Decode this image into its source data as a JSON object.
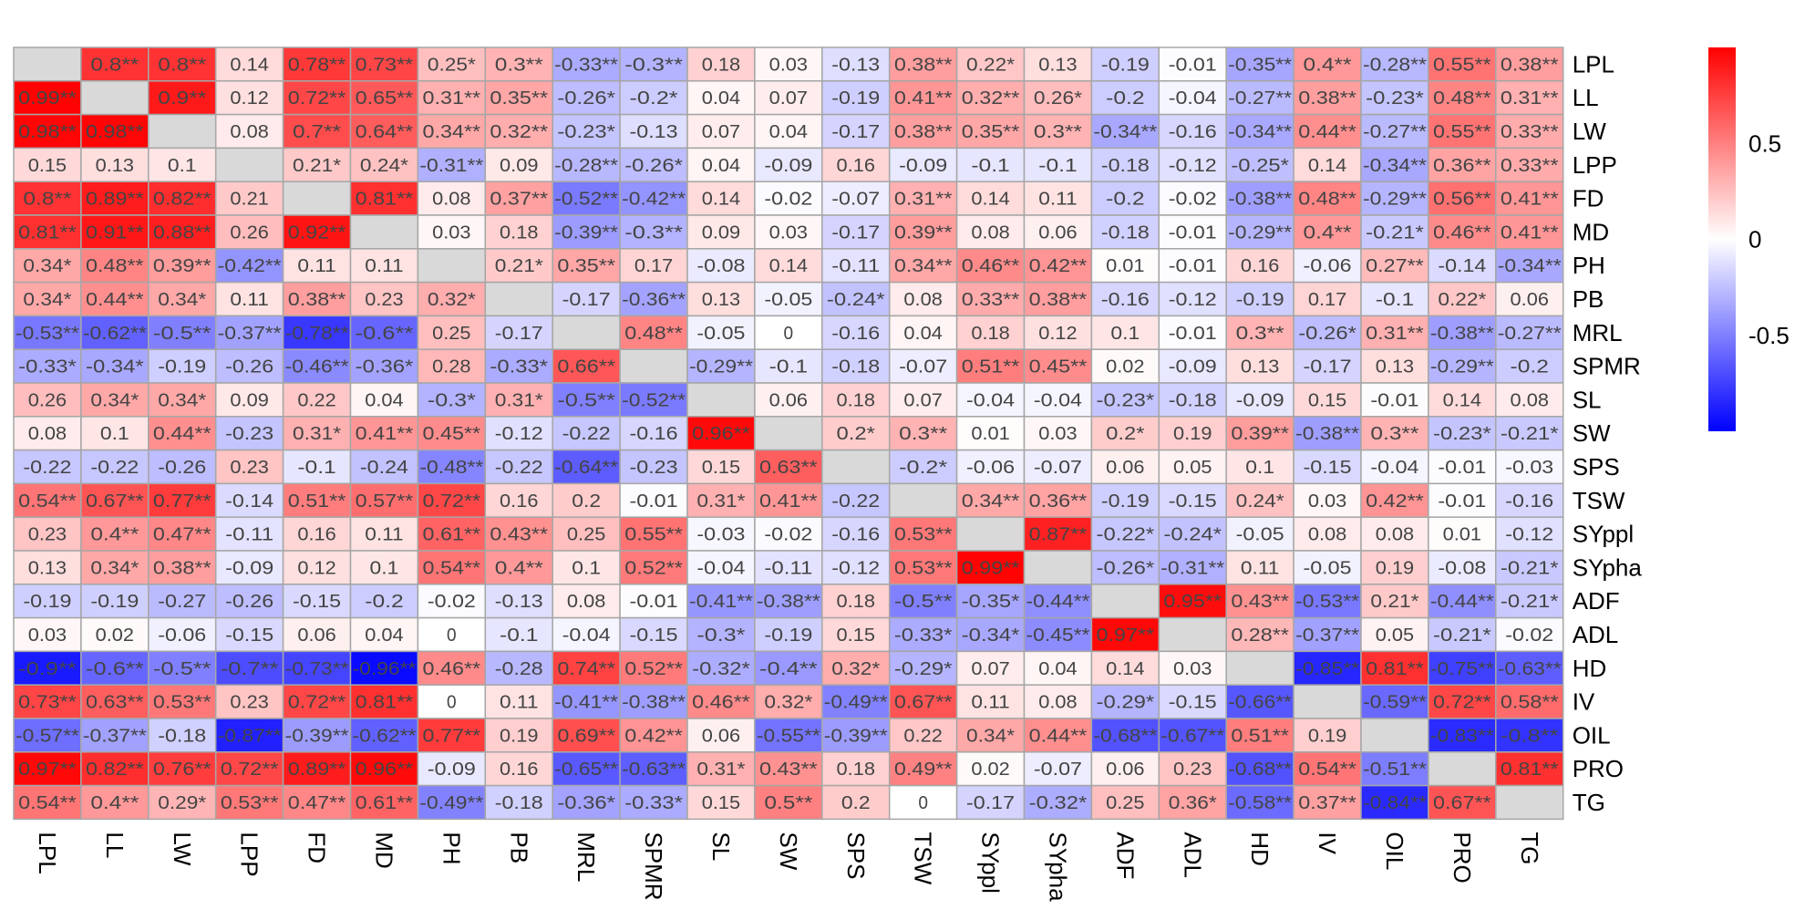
{
  "chart_data": {
    "type": "heatmap",
    "title": "",
    "labels": [
      "LPL",
      "LL",
      "LW",
      "LPP",
      "FD",
      "MD",
      "PH",
      "PB",
      "MRL",
      "SPMR",
      "SL",
      "SW",
      "SPS",
      "TSW",
      "SYppl",
      "SYpha",
      "ADF",
      "ADL",
      "HD",
      "IV",
      "OIL",
      "PRO",
      "TG"
    ],
    "matrix": [
      [
        null,
        "0.8**",
        "0.8**",
        "0.14",
        "0.78**",
        "0.73**",
        "0.25*",
        "0.3**",
        "-0.33**",
        "-0.3**",
        "0.18",
        "0.03",
        "-0.13",
        "0.38**",
        "0.22*",
        "0.13",
        "-0.19",
        "-0.01",
        "-0.35**",
        "0.4**",
        "-0.28**",
        "0.55**",
        "0.38**"
      ],
      [
        "0.99**",
        null,
        "0.9**",
        "0.12",
        "0.72**",
        "0.65**",
        "0.31**",
        "0.35**",
        "-0.26*",
        "-0.2*",
        "0.04",
        "0.07",
        "-0.19",
        "0.41**",
        "0.32**",
        "0.26*",
        "-0.2",
        "-0.04",
        "-0.27**",
        "0.38**",
        "-0.23*",
        "0.48**",
        "0.31**"
      ],
      [
        "0.98**",
        "0.98**",
        null,
        "0.08",
        "0.7**",
        "0.64**",
        "0.34**",
        "0.32**",
        "-0.23*",
        "-0.13",
        "0.07",
        "0.04",
        "-0.17",
        "0.38**",
        "0.35**",
        "0.3**",
        "-0.34**",
        "-0.16",
        "-0.34**",
        "0.44**",
        "-0.27**",
        "0.55**",
        "0.33**"
      ],
      [
        "0.15",
        "0.13",
        "0.1",
        null,
        "0.21*",
        "0.24*",
        "-0.31**",
        "0.09",
        "-0.28**",
        "-0.26*",
        "0.04",
        "-0.09",
        "0.16",
        "-0.09",
        "-0.1",
        "-0.1",
        "-0.18",
        "-0.12",
        "-0.25*",
        "0.14",
        "-0.34**",
        "0.36**",
        "0.33**"
      ],
      [
        "0.8**",
        "0.89**",
        "0.82**",
        "0.21",
        null,
        "0.81**",
        "0.08",
        "0.37**",
        "-0.52**",
        "-0.42**",
        "0.14",
        "-0.02",
        "-0.07",
        "0.31**",
        "0.14",
        "0.11",
        "-0.2",
        "-0.02",
        "-0.38**",
        "0.48**",
        "-0.29**",
        "0.56**",
        "0.41**"
      ],
      [
        "0.81**",
        "0.91**",
        "0.88**",
        "0.26",
        "0.92**",
        null,
        "0.03",
        "0.18",
        "-0.39**",
        "-0.3**",
        "0.09",
        "0.03",
        "-0.17",
        "0.39**",
        "0.08",
        "0.06",
        "-0.18",
        "-0.01",
        "-0.29**",
        "0.4**",
        "-0.21*",
        "0.46**",
        "0.41**"
      ],
      [
        "0.34*",
        "0.48**",
        "0.39**",
        "-0.42**",
        "0.11",
        "0.11",
        null,
        "0.21*",
        "0.35**",
        "0.17",
        "-0.08",
        "0.14",
        "-0.11",
        "0.34**",
        "0.46**",
        "0.42**",
        "0.01",
        "-0.01",
        "0.16",
        "-0.06",
        "0.27**",
        "-0.14",
        "-0.34**"
      ],
      [
        "0.34*",
        "0.44**",
        "0.34*",
        "0.11",
        "0.38**",
        "0.23",
        "0.32*",
        null,
        "-0.17",
        "-0.36**",
        "0.13",
        "-0.05",
        "-0.24*",
        "0.08",
        "0.33**",
        "0.38**",
        "-0.16",
        "-0.12",
        "-0.19",
        "0.17",
        "-0.1",
        "0.22*",
        "0.06"
      ],
      [
        "-0.53**",
        "-0.62**",
        "-0.5**",
        "-0.37**",
        "-0.78**",
        "-0.6**",
        "0.25",
        "-0.17",
        null,
        "0.48**",
        "-0.05",
        "0",
        "-0.16",
        "0.04",
        "0.18",
        "0.12",
        "0.1",
        "-0.01",
        "0.3**",
        "-0.26*",
        "0.31**",
        "-0.38**",
        "-0.27**"
      ],
      [
        "-0.33*",
        "-0.34*",
        "-0.19",
        "-0.26",
        "-0.46**",
        "-0.36*",
        "0.28",
        "-0.33*",
        "0.66**",
        null,
        "-0.29**",
        "-0.1",
        "-0.18",
        "-0.07",
        "0.51**",
        "0.45**",
        "0.02",
        "-0.09",
        "0.13",
        "-0.17",
        "0.13",
        "-0.29**",
        "-0.2"
      ],
      [
        "0.26",
        "0.34*",
        "0.34*",
        "0.09",
        "0.22",
        "0.04",
        "-0.3*",
        "0.31*",
        "-0.5**",
        "-0.52**",
        null,
        "0.06",
        "0.18",
        "0.07",
        "-0.04",
        "-0.04",
        "-0.23*",
        "-0.18",
        "-0.09",
        "0.15",
        "-0.01",
        "0.14",
        "0.08"
      ],
      [
        "0.08",
        "0.1",
        "0.44**",
        "-0.23",
        "0.31*",
        "0.41**",
        "0.45**",
        "-0.12",
        "-0.22",
        "-0.16",
        "0.96**",
        null,
        "0.2*",
        "0.3**",
        "0.01",
        "0.03",
        "0.2*",
        "0.19",
        "0.39**",
        "-0.38**",
        "0.3**",
        "-0.23*",
        "-0.21*"
      ],
      [
        "-0.22",
        "-0.22",
        "-0.26",
        "0.23",
        "-0.1",
        "-0.24",
        "-0.48**",
        "-0.22",
        "-0.64**",
        "-0.23",
        "0.15",
        "0.63**",
        null,
        "-0.2*",
        "-0.06",
        "-0.07",
        "0.06",
        "0.05",
        "0.1",
        "-0.15",
        "-0.04",
        "-0.01",
        "-0.03"
      ],
      [
        "0.54**",
        "0.67**",
        "0.77**",
        "-0.14",
        "0.51**",
        "0.57**",
        "0.72**",
        "0.16",
        "0.2",
        "-0.01",
        "0.31*",
        "0.41**",
        "-0.22",
        null,
        "0.34**",
        "0.36**",
        "-0.19",
        "-0.15",
        "0.24*",
        "0.03",
        "0.42**",
        "-0.01",
        "-0.16"
      ],
      [
        "0.23",
        "0.4**",
        "0.47**",
        "-0.11",
        "0.16",
        "0.11",
        "0.61**",
        "0.43**",
        "0.25",
        "0.55**",
        "-0.03",
        "-0.02",
        "-0.16",
        "0.53**",
        null,
        "0.87**",
        "-0.22*",
        "-0.24*",
        "-0.05",
        "0.08",
        "0.08",
        "0.01",
        "-0.12"
      ],
      [
        "0.13",
        "0.34*",
        "0.38**",
        "-0.09",
        "0.12",
        "0.1",
        "0.54**",
        "0.4**",
        "0.1",
        "0.52**",
        "-0.04",
        "-0.11",
        "-0.12",
        "0.53**",
        "0.99**",
        null,
        "-0.26*",
        "-0.31**",
        "0.11",
        "-0.05",
        "0.19",
        "-0.08",
        "-0.21*"
      ],
      [
        "-0.19",
        "-0.19",
        "-0.27",
        "-0.26",
        "-0.15",
        "-0.2",
        "-0.02",
        "-0.13",
        "0.08",
        "-0.01",
        "-0.41**",
        "-0.38**",
        "0.18",
        "-0.5**",
        "-0.35*",
        "-0.44**",
        null,
        "0.95**",
        "0.43**",
        "-0.53**",
        "0.21*",
        "-0.44**",
        "-0.21*"
      ],
      [
        "0.03",
        "0.02",
        "-0.06",
        "-0.15",
        "0.06",
        "0.04",
        "0",
        "-0.1",
        "-0.04",
        "-0.15",
        "-0.3*",
        "-0.19",
        "0.15",
        "-0.33*",
        "-0.34*",
        "-0.45**",
        "0.97**",
        null,
        "0.28**",
        "-0.37**",
        "0.05",
        "-0.21*",
        "-0.02"
      ],
      [
        "-0.9**",
        "-0.6**",
        "-0.5**",
        "-0.7**",
        "-0.73**",
        "-0.96**",
        "0.46**",
        "-0.28",
        "0.74**",
        "0.52**",
        "-0.32*",
        "-0.4**",
        "0.32*",
        "-0.29*",
        "0.07",
        "0.04",
        "0.14",
        "0.03",
        null,
        "-0.85**",
        "0.81**",
        "-0.75**",
        "-0.63**"
      ],
      [
        "0.73**",
        "0.63**",
        "0.53**",
        "0.23",
        "0.72**",
        "0.81**",
        "0",
        "0.11",
        "-0.41**",
        "-0.38**",
        "0.46**",
        "0.32*",
        "-0.49**",
        "0.67**",
        "0.11",
        "0.08",
        "-0.29*",
        "-0.15",
        "-0.66**",
        null,
        "-0.59**",
        "0.72**",
        "0.58**"
      ],
      [
        "-0.57**",
        "-0.37**",
        "-0.18",
        "-0.87**",
        "-0.39**",
        "-0.62**",
        "0.77**",
        "0.19",
        "0.69**",
        "0.42**",
        "0.06",
        "-0.55**",
        "-0.39**",
        "0.22",
        "0.34*",
        "0.44**",
        "-0.68**",
        "-0.67**",
        "0.51**",
        "0.19",
        null,
        "-0.83**",
        "-0.8**"
      ],
      [
        "0.97**",
        "0.82**",
        "0.76**",
        "0.72**",
        "0.89**",
        "0.96**",
        "-0.09",
        "0.16",
        "-0.65**",
        "-0.63**",
        "0.31*",
        "0.43**",
        "0.18",
        "0.49**",
        "0.02",
        "-0.07",
        "0.06",
        "0.23",
        "-0.68**",
        "0.54**",
        "-0.51**",
        null,
        "0.81**"
      ],
      [
        "0.54**",
        "0.4**",
        "0.29*",
        "0.53**",
        "0.47**",
        "0.61**",
        "-0.49**",
        "-0.18",
        "-0.36*",
        "-0.33*",
        "0.15",
        "0.5**",
        "0.2",
        "0",
        "-0.17",
        "-0.32*",
        "0.25",
        "0.36*",
        "-0.58**",
        "0.37**",
        "-0.84**",
        "0.67**",
        null
      ]
    ],
    "colorbar": {
      "range": [
        -1,
        1
      ],
      "ticks": [
        "0.5",
        "0",
        "-0.5"
      ],
      "tick_values": [
        0.5,
        0,
        -0.5
      ]
    },
    "colors": {
      "low": "#0000ff",
      "mid": "#ffffff",
      "high": "#ff0000",
      "diagonal": "#d9d9d9",
      "grid": "#a6a6a6"
    }
  }
}
